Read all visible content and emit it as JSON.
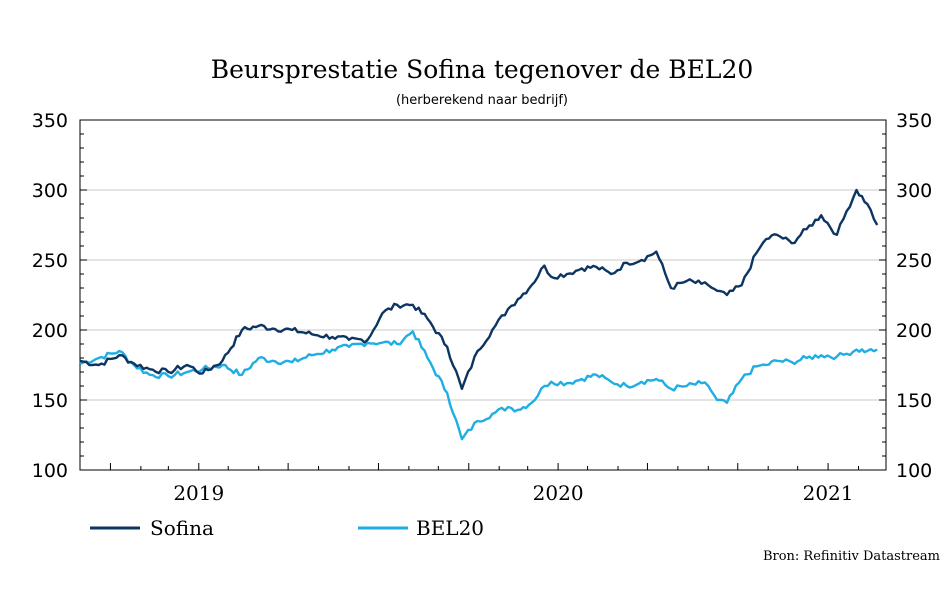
{
  "chart_data": {
    "type": "line",
    "title": "Beursprestatie Sofina tegenover de BEL20",
    "subtitle": "(herberekend naar bedrijf)",
    "source": "Bron: Refinitiv Datastream",
    "xlabel": "",
    "ylabel": "",
    "ylim": [
      100,
      350
    ],
    "yticks": [
      "100",
      "150",
      "200",
      "250",
      "300",
      "350"
    ],
    "xlim": [
      "2018-12-01",
      "2021-03-01"
    ],
    "x_tick_labels": [
      {
        "label": "2019",
        "x": "2019-04-01"
      },
      {
        "label": "2020",
        "x": "2020-04-01"
      },
      {
        "label": "2021",
        "x": "2021-01-01"
      }
    ],
    "grid": "horizontal",
    "legend_position": "bottom-left",
    "series": [
      {
        "name": "Sofina",
        "color": "#0d3561",
        "x": [
          "2018-12-01",
          "2018-12-20",
          "2019-01-10",
          "2019-01-25",
          "2019-02-10",
          "2019-03-01",
          "2019-03-20",
          "2019-04-05",
          "2019-04-25",
          "2019-05-15",
          "2019-06-01",
          "2019-06-15",
          "2019-07-05",
          "2019-07-25",
          "2019-08-15",
          "2019-09-01",
          "2019-09-20",
          "2019-10-05",
          "2019-10-20",
          "2019-11-05",
          "2019-11-20",
          "2019-12-10",
          "2019-12-25",
          "2020-01-10",
          "2020-01-25",
          "2020-02-10",
          "2020-02-20",
          "2020-03-05",
          "2020-03-18",
          "2020-03-25",
          "2020-04-10",
          "2020-04-25",
          "2020-05-10",
          "2020-05-25",
          "2020-06-10",
          "2020-06-25",
          "2020-07-10",
          "2020-07-25",
          "2020-08-10",
          "2020-08-25",
          "2020-09-01",
          "2020-09-10",
          "2020-09-20",
          "2020-10-05",
          "2020-10-20",
          "2020-10-30",
          "2020-11-10",
          "2020-11-25",
          "2020-12-10",
          "2020-12-25",
          "2021-01-10",
          "2021-01-20",
          "2021-01-30",
          "2021-02-10",
          "2021-02-20"
        ],
        "values": [
          178,
          175,
          182,
          176,
          172,
          170,
          175,
          169,
          178,
          200,
          203,
          201,
          200,
          197,
          195,
          193,
          193,
          212,
          218,
          218,
          208,
          188,
          158,
          185,
          200,
          215,
          222,
          232,
          246,
          238,
          240,
          244,
          245,
          240,
          248,
          250,
          256,
          230,
          235,
          233,
          232,
          228,
          225,
          232,
          255,
          265,
          268,
          262,
          272,
          282,
          268,
          285,
          300,
          290,
          275
        ]
      },
      {
        "name": "BEL20",
        "color": "#1eaee3",
        "x": [
          "2018-12-01",
          "2018-12-20",
          "2019-01-10",
          "2019-01-25",
          "2019-02-10",
          "2019-03-01",
          "2019-03-20",
          "2019-04-05",
          "2019-04-25",
          "2019-05-15",
          "2019-06-01",
          "2019-06-15",
          "2019-07-05",
          "2019-07-25",
          "2019-08-15",
          "2019-09-01",
          "2019-09-20",
          "2019-10-05",
          "2019-10-20",
          "2019-11-05",
          "2019-11-20",
          "2019-12-10",
          "2019-12-25",
          "2020-01-10",
          "2020-01-25",
          "2020-02-10",
          "2020-02-20",
          "2020-03-05",
          "2020-03-18",
          "2020-03-25",
          "2020-04-10",
          "2020-04-25",
          "2020-05-10",
          "2020-05-25",
          "2020-06-10",
          "2020-06-25",
          "2020-07-10",
          "2020-07-25",
          "2020-08-10",
          "2020-08-25",
          "2020-09-01",
          "2020-09-10",
          "2020-09-20",
          "2020-10-05",
          "2020-10-20",
          "2020-10-30",
          "2020-11-10",
          "2020-11-25",
          "2020-12-10",
          "2020-12-25",
          "2021-01-10",
          "2021-01-20",
          "2021-01-30",
          "2021-02-10",
          "2021-02-20"
        ],
        "values": [
          176,
          180,
          185,
          175,
          168,
          167,
          170,
          172,
          175,
          168,
          180,
          178,
          177,
          182,
          186,
          188,
          191,
          191,
          190,
          199,
          180,
          155,
          122,
          135,
          140,
          145,
          143,
          148,
          160,
          163,
          162,
          165,
          168,
          163,
          160,
          163,
          165,
          158,
          160,
          162,
          160,
          150,
          148,
          165,
          174,
          175,
          178,
          177,
          180,
          182,
          181,
          183,
          186,
          185,
          186
        ]
      }
    ]
  }
}
